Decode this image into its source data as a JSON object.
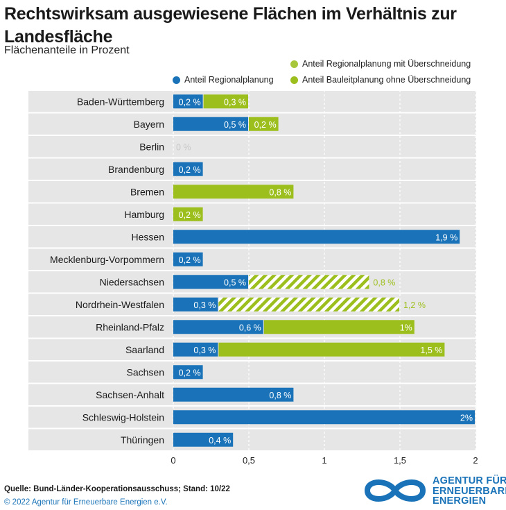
{
  "title": "Rechtswirksam ausgewiesene Flächen im Verhältnis zur Landesfläche",
  "subtitle": "Flächenanteile in Prozent",
  "legend": [
    {
      "label": "Anteil Regionalplanung mit Überschneidung",
      "color": "#a8c63a"
    },
    {
      "label": "Anteil Regionalplanung",
      "color": "#1a73b8"
    },
    {
      "label": "Anteil Bauleitplanung ohne Überschneidung",
      "color": "#9dbf1d"
    }
  ],
  "footer": {
    "source": "Quelle: Bund-Länder-Kooperationsausschuss; Stand: 10/22",
    "copyright": "© 2022 Agentur für Erneuerbare Energien e.V."
  },
  "logo": {
    "line1": "AGENTUR FÜR",
    "line2": "ERNEUERBARE",
    "line3": "ENERGIEN"
  },
  "colors": {
    "regional": "#1a73b8",
    "bauleit": "#9dbf1d",
    "overlap_hatch": "#9dbf1d",
    "plot_bg": "#e6e6e6",
    "zero_label": "#c8c8c8"
  },
  "chart_data": {
    "type": "bar",
    "orientation": "horizontal",
    "stacked": true,
    "categories": [
      "Baden-Württemberg",
      "Bayern",
      "Berlin",
      "Brandenburg",
      "Bremen",
      "Hamburg",
      "Hessen",
      "Mecklenburg-Vorpommern",
      "Niedersachsen",
      "Nordrhein-Westfalen",
      "Rheinland-Pfalz",
      "Saarland",
      "Sachsen",
      "Sachsen-Anhalt",
      "Schleswig-Holstein",
      "Thüringen"
    ],
    "series": [
      {
        "name": "Anteil Regionalplanung",
        "color": "#1a73b8",
        "values": [
          0.2,
          0.5,
          0,
          0.2,
          0,
          0,
          1.9,
          0.2,
          0.5,
          0.3,
          0.6,
          0.3,
          0.2,
          0.8,
          2,
          0.4
        ],
        "labels": [
          "0,2 %",
          "0,5 %",
          "0 %",
          "0,2 %",
          "",
          "",
          "1,9 %",
          "0,2 %",
          "0,5 %",
          "0,3 %",
          "0,6 %",
          "0,3 %",
          "0,2 %",
          "0,8 %",
          "2%",
          "0,4 %"
        ]
      },
      {
        "name": "Anteil Bauleitplanung ohne Überschneidung",
        "color": "#9dbf1d",
        "values": [
          0.3,
          0.2,
          0,
          0,
          0.8,
          0.2,
          0,
          0,
          0,
          0,
          1,
          1.5,
          0,
          0,
          0,
          0
        ],
        "labels": [
          "0,3 %",
          "0,2 %",
          "",
          "",
          "0,8 %",
          "0,2 %",
          "",
          "",
          "",
          "",
          "1%",
          "1,5 %",
          "",
          "",
          "",
          ""
        ]
      },
      {
        "name": "Anteil Regionalplanung mit Überschneidung",
        "color": "#9dbf1d",
        "pattern": "hatch",
        "values": [
          0,
          0,
          0,
          0,
          0,
          0,
          0,
          0,
          0.8,
          1.2,
          0,
          0,
          0,
          0,
          0,
          0
        ],
        "labels": [
          "",
          "",
          "",
          "",
          "",
          "",
          "",
          "",
          "0,8 %",
          "1,2 %",
          "",
          "",
          "",
          "",
          "",
          ""
        ]
      }
    ],
    "xticks": [
      "0",
      "0,5",
      "1",
      "1,5",
      "2"
    ],
    "xlim": [
      0,
      2
    ],
    "grid": true,
    "legend_position": "top-right"
  }
}
